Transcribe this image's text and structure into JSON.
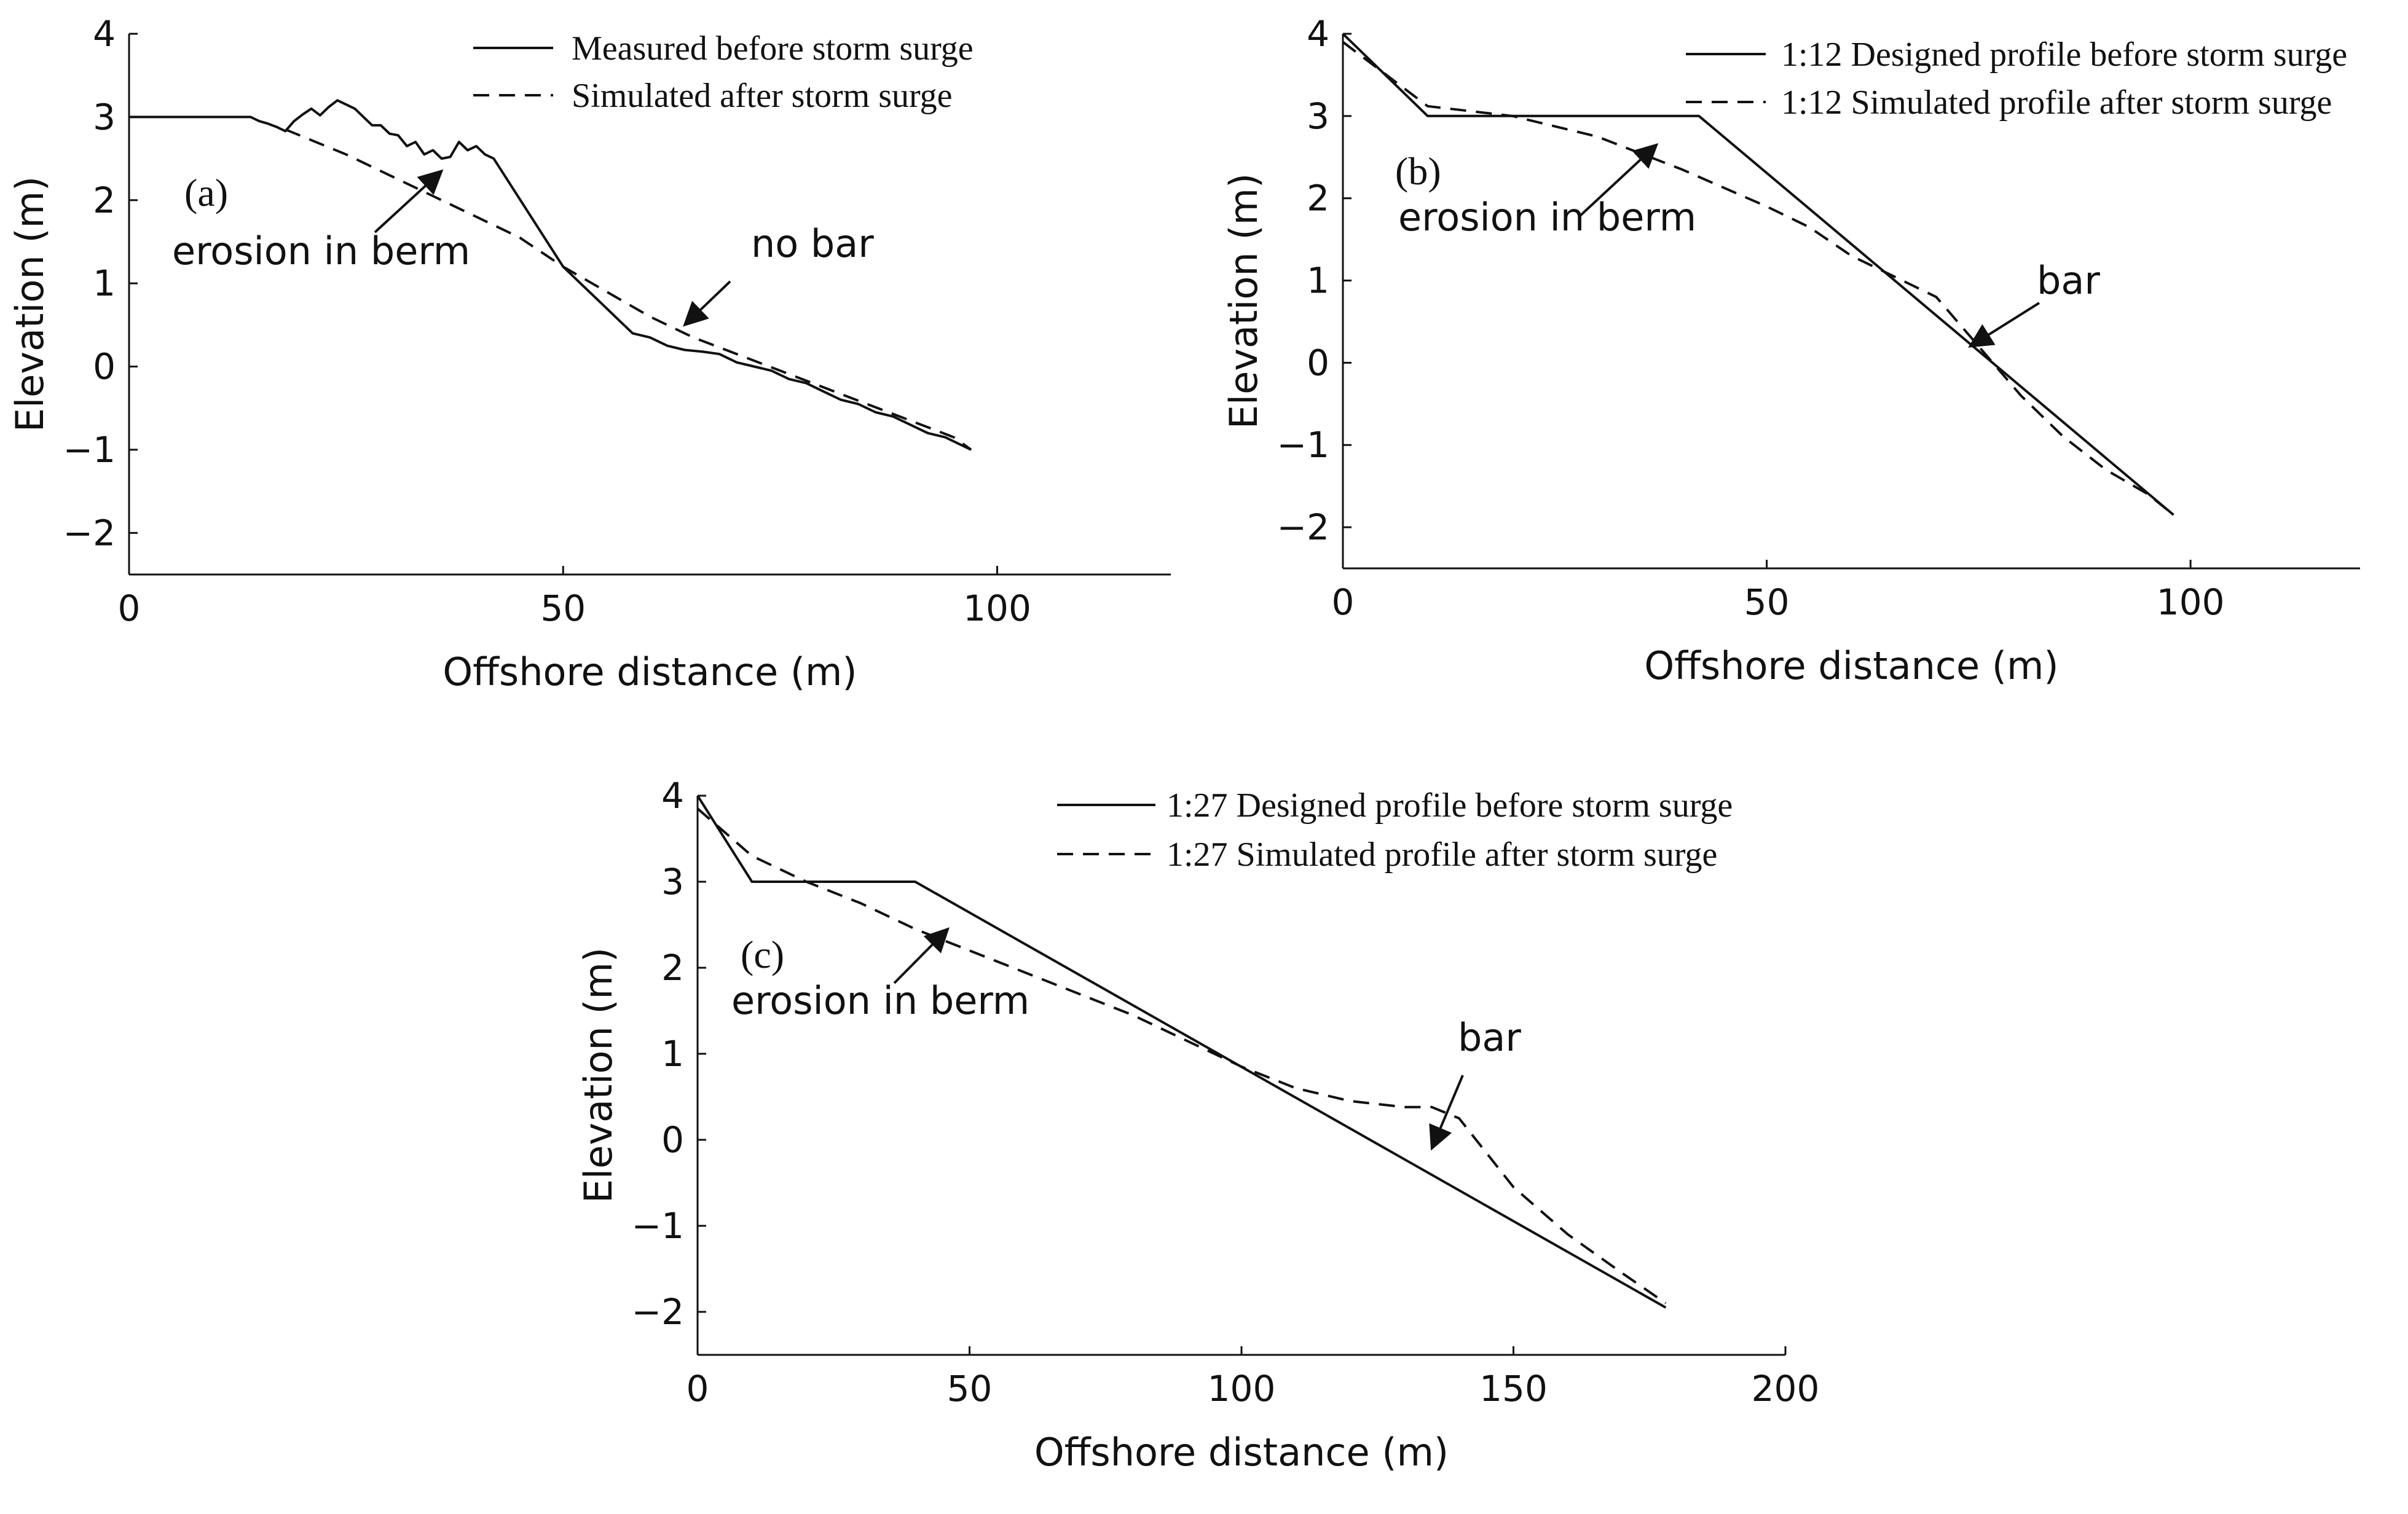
{
  "chart_data": [
    {
      "id": "a",
      "type": "line",
      "panel_label": "(a)",
      "xlabel": "Offshore distance (m)",
      "ylabel": "Elevation (m)",
      "xlim": [
        0,
        120
      ],
      "ylim": [
        -2.5,
        4
      ],
      "xticks": [
        0,
        50,
        100
      ],
      "yticks": [
        4,
        3,
        2,
        1,
        0,
        -1,
        -2
      ],
      "tick_labels_x": [
        "0",
        "50",
        "100"
      ],
      "tick_labels_y": [
        "4",
        "3",
        "2",
        "1",
        "0",
        "−1",
        "−2"
      ],
      "legend_position": "top-right",
      "series": [
        {
          "name": "Measured before storm surge",
          "style": "solid",
          "x": [
            0,
            14,
            15,
            16,
            17,
            18,
            19,
            20,
            21,
            22,
            23,
            24,
            25,
            26,
            27,
            28,
            29,
            30,
            31,
            32,
            33,
            34,
            35,
            36,
            37,
            38,
            39,
            40,
            41,
            42,
            50,
            52,
            54,
            56,
            58,
            60,
            62,
            64,
            66,
            68,
            70,
            72,
            74,
            76,
            78,
            80,
            82,
            84,
            86,
            88,
            90,
            92,
            94,
            96,
            97
          ],
          "y": [
            3.0,
            3.0,
            2.95,
            2.92,
            2.88,
            2.83,
            2.95,
            3.03,
            3.1,
            3.02,
            3.12,
            3.2,
            3.15,
            3.1,
            3.0,
            2.9,
            2.9,
            2.8,
            2.78,
            2.65,
            2.7,
            2.55,
            2.6,
            2.5,
            2.52,
            2.7,
            2.6,
            2.65,
            2.55,
            2.5,
            1.2,
            1.0,
            0.8,
            0.6,
            0.4,
            0.35,
            0.25,
            0.2,
            0.18,
            0.15,
            0.05,
            0.0,
            -0.05,
            -0.15,
            -0.2,
            -0.3,
            -0.4,
            -0.45,
            -0.55,
            -0.6,
            -0.7,
            -0.8,
            -0.85,
            -0.95,
            -1.0
          ]
        },
        {
          "name": "Simulated after storm surge",
          "style": "dashed",
          "x": [
            18,
            25,
            30,
            35,
            40,
            45,
            50,
            55,
            60,
            65,
            70,
            75,
            80,
            85,
            90,
            95,
            97
          ],
          "y": [
            2.85,
            2.55,
            2.3,
            2.05,
            1.8,
            1.55,
            1.2,
            0.9,
            0.6,
            0.35,
            0.15,
            -0.05,
            -0.25,
            -0.45,
            -0.65,
            -0.85,
            -1.0
          ]
        }
      ],
      "annotations": [
        {
          "text": "erosion in berm",
          "arrow_to": [
            36,
            2.35
          ]
        },
        {
          "text": "no bar",
          "arrow_to": [
            64,
            0.5
          ]
        }
      ]
    },
    {
      "id": "b",
      "type": "line",
      "panel_label": "(b)",
      "xlabel": "Offshore distance (m)",
      "ylabel": "Elevation (m)",
      "xlim": [
        0,
        120
      ],
      "ylim": [
        -2.5,
        4
      ],
      "xticks": [
        0,
        50,
        100
      ],
      "yticks": [
        4,
        3,
        2,
        1,
        0,
        -1,
        -2
      ],
      "tick_labels_x": [
        "0",
        "50",
        "100"
      ],
      "tick_labels_y": [
        "4",
        "3",
        "2",
        "1",
        "0",
        "−1",
        "−2"
      ],
      "legend_position": "top-right",
      "series": [
        {
          "name": "1:12 Designed profile before storm surge",
          "style": "solid",
          "x": [
            0,
            10,
            42,
            98
          ],
          "y": [
            4.0,
            3.0,
            3.0,
            -1.85
          ]
        },
        {
          "name": "1:12 Simulated profile after storm surge",
          "style": "dashed",
          "x": [
            0,
            10,
            20,
            30,
            40,
            50,
            55,
            60,
            65,
            70,
            75,
            80,
            85,
            90,
            95,
            98
          ],
          "y": [
            3.9,
            3.12,
            3.0,
            2.75,
            2.35,
            1.9,
            1.65,
            1.3,
            1.05,
            0.8,
            0.2,
            -0.4,
            -0.9,
            -1.3,
            -1.6,
            -1.85
          ]
        }
      ],
      "annotations": [
        {
          "text": "erosion in berm",
          "arrow_to": [
            37,
            2.65
          ]
        },
        {
          "text": "bar",
          "arrow_to": [
            74,
            0.2
          ]
        }
      ]
    },
    {
      "id": "c",
      "type": "line",
      "panel_label": "(c)",
      "xlabel": "Offshore distance (m)",
      "ylabel": "Elevation (m)",
      "xlim": [
        0,
        200
      ],
      "ylim": [
        -2.5,
        4
      ],
      "xticks": [
        0,
        50,
        100,
        150,
        200
      ],
      "yticks": [
        4,
        3,
        2,
        1,
        0,
        -1,
        -2
      ],
      "tick_labels_x": [
        "0",
        "50",
        "100",
        "150",
        "200"
      ],
      "tick_labels_y": [
        "4",
        "3",
        "2",
        "1",
        "0",
        "−1",
        "−2"
      ],
      "legend_position": "top-right",
      "series": [
        {
          "name": "1:27 Designed profile before storm surge",
          "style": "solid",
          "x": [
            0,
            10,
            40,
            178
          ],
          "y": [
            4.0,
            3.0,
            3.0,
            -1.95
          ]
        },
        {
          "name": "1:27 Simulated profile after storm surge",
          "style": "dashed",
          "x": [
            0,
            10,
            20,
            30,
            40,
            50,
            60,
            70,
            80,
            90,
            100,
            110,
            120,
            130,
            135,
            140,
            145,
            150,
            160,
            170,
            178
          ],
          "y": [
            3.85,
            3.3,
            3.0,
            2.75,
            2.45,
            2.2,
            1.95,
            1.7,
            1.45,
            1.15,
            0.85,
            0.6,
            0.45,
            0.38,
            0.38,
            0.25,
            -0.15,
            -0.55,
            -1.1,
            -1.55,
            -1.9
          ]
        }
      ],
      "annotations": [
        {
          "text": "erosion in berm",
          "arrow_to": [
            46,
            2.45
          ]
        },
        {
          "text": "bar",
          "arrow_to": [
            135,
            -0.1
          ]
        }
      ]
    }
  ]
}
